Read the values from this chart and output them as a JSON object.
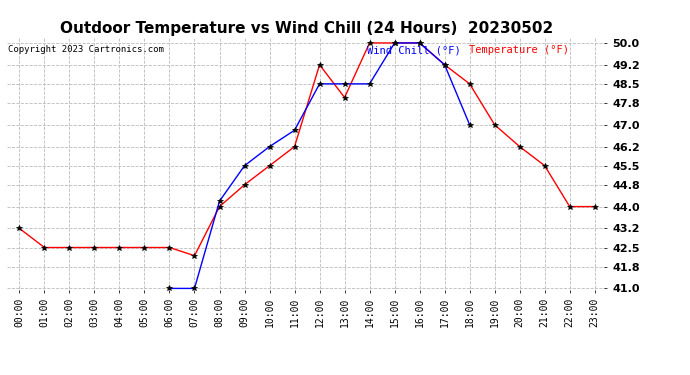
{
  "title": "Outdoor Temperature vs Wind Chill (24 Hours)  20230502",
  "copyright": "Copyright 2023 Cartronics.com",
  "legend_wind_chill": "Wind Chill (°F)",
  "legend_temperature": "Temperature (°F)",
  "hours": [
    "00:00",
    "01:00",
    "02:00",
    "03:00",
    "04:00",
    "05:00",
    "06:00",
    "07:00",
    "08:00",
    "09:00",
    "10:00",
    "11:00",
    "12:00",
    "13:00",
    "14:00",
    "15:00",
    "16:00",
    "17:00",
    "18:00",
    "19:00",
    "20:00",
    "21:00",
    "22:00",
    "23:00"
  ],
  "temperature": [
    43.2,
    42.5,
    42.5,
    42.5,
    42.5,
    42.5,
    42.5,
    42.2,
    44.0,
    44.8,
    45.5,
    46.2,
    49.2,
    48.0,
    50.0,
    50.0,
    50.0,
    49.2,
    48.5,
    47.0,
    46.2,
    45.5,
    44.0,
    44.0
  ],
  "wind_chill": [
    null,
    null,
    null,
    null,
    null,
    null,
    41.0,
    41.0,
    44.2,
    45.5,
    46.2,
    46.8,
    48.5,
    48.5,
    48.5,
    50.0,
    50.0,
    49.2,
    47.0,
    null,
    null,
    null,
    null,
    null
  ],
  "ylim": [
    40.85,
    50.2
  ],
  "yticks": [
    41.0,
    41.8,
    42.5,
    43.2,
    44.0,
    44.8,
    45.5,
    46.2,
    47.0,
    47.8,
    48.5,
    49.2,
    50.0
  ],
  "temp_color": "red",
  "wind_color": "blue",
  "bg_color": "white",
  "grid_color": "#bbbbbb",
  "title_fontsize": 11,
  "tick_fontsize": 7,
  "ytick_fontsize": 8
}
